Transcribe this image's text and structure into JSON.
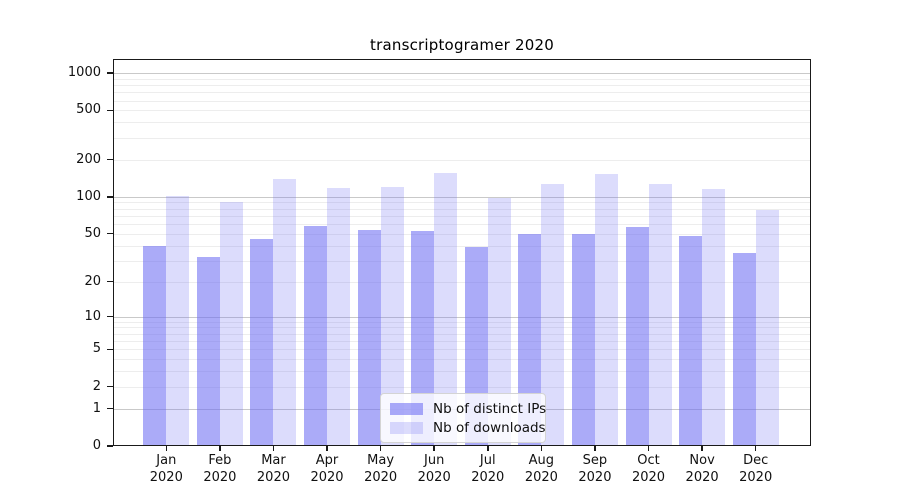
{
  "figure": {
    "background": "#ffffff"
  },
  "chart_data": {
    "type": "bar",
    "title": "transcriptogramer 2020",
    "categories": [
      "Jan 2020",
      "Feb 2020",
      "Mar 2020",
      "Apr 2020",
      "May 2020",
      "Jun 2020",
      "Jul 2020",
      "Aug 2020",
      "Sep 2020",
      "Oct 2020",
      "Nov 2020",
      "Dec 2020"
    ],
    "series": [
      {
        "name": "Nb of distinct IPs",
        "color": "rgba(110,110,243,0.58)",
        "values": [
          40,
          32,
          45,
          58,
          54,
          53,
          39,
          50,
          50,
          57,
          48,
          35
        ]
      },
      {
        "name": "Nb of downloads",
        "color": "rgba(110,110,243,0.24)",
        "values": [
          102,
          91,
          140,
          117,
          120,
          157,
          98,
          126,
          152,
          128,
          116,
          78
        ]
      }
    ],
    "xlabel": "",
    "ylabel": "",
    "yscale": "symlog",
    "yticks": [
      0,
      1,
      2,
      5,
      10,
      20,
      50,
      100,
      200,
      500,
      1000
    ],
    "ylim": [
      0,
      1250
    ],
    "grid": "horizontal major and minor gridlines",
    "legend_position": "lower center, inside plot",
    "colors": {
      "major_grid": "#c9c9c9",
      "minor_grid": "#ededed",
      "spine": "#1a1a1a",
      "text": "#111111",
      "background": "#ffffff"
    }
  }
}
